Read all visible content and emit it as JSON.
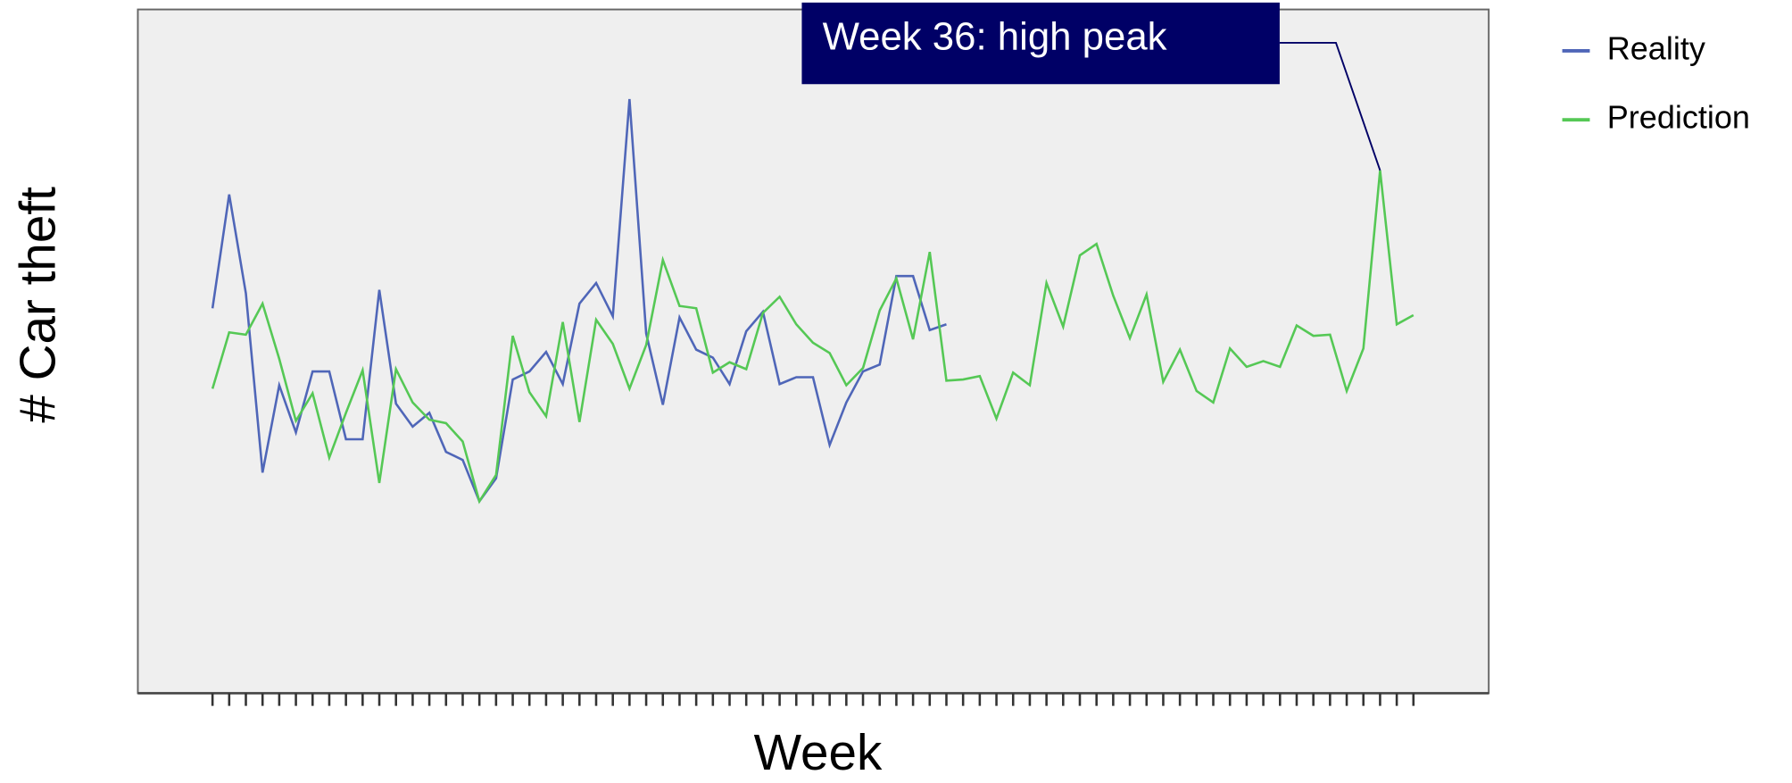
{
  "chart_data": {
    "type": "line",
    "x_label": "Week",
    "y_label": "# Car theft",
    "annotation": "Week 36: high peak",
    "categories": [
      null,
      null,
      null,
      null,
      null,
      null,
      null,
      null,
      null,
      null,
      null,
      null,
      null,
      null,
      null,
      null,
      null,
      null,
      null,
      null,
      null,
      null,
      null,
      null,
      null,
      null,
      null,
      null,
      null,
      null,
      null,
      null,
      null,
      null,
      null,
      null,
      null,
      null,
      null,
      null,
      null,
      null,
      null,
      null,
      null,
      null,
      null,
      null,
      null,
      null,
      null,
      null,
      null,
      null,
      null,
      null,
      null,
      null,
      null,
      null,
      null,
      null,
      null,
      null,
      null,
      null,
      null,
      null,
      null,
      null,
      null,
      null,
      null
    ],
    "series": [
      {
        "name": "Reality",
        "color": "#4f66b8",
        "values": [
          335,
          434,
          348,
          192,
          268,
          227,
          280,
          280,
          221,
          221,
          351,
          252,
          232,
          244,
          210,
          203,
          167,
          187,
          273,
          280,
          297,
          269,
          339,
          357,
          328,
          517,
          313,
          251,
          327,
          299,
          292,
          269,
          315,
          332,
          269,
          275,
          275,
          216,
          253,
          280,
          286,
          363,
          363,
          316,
          321,
          null,
          null,
          null,
          null,
          null,
          null,
          null,
          null,
          null,
          null,
          null,
          null,
          null,
          null,
          null,
          null,
          null,
          null,
          null,
          null,
          null,
          null,
          null,
          null,
          null,
          null,
          null,
          null
        ]
      },
      {
        "name": "Prediction",
        "color": "#55c855",
        "values": [
          265,
          314,
          312,
          339,
          291,
          237,
          261,
          205,
          244,
          281,
          183,
          282,
          253,
          238,
          235,
          219,
          167,
          190,
          311,
          262,
          241,
          323,
          236,
          325,
          304,
          265,
          303,
          377,
          337,
          335,
          279,
          288,
          282,
          331,
          345,
          321,
          305,
          296,
          268,
          283,
          333,
          361,
          308,
          384,
          272,
          273,
          276,
          239,
          279,
          268,
          357,
          319,
          381,
          391,
          346,
          309,
          347,
          271,
          299,
          263,
          253,
          300,
          284,
          289,
          284,
          320,
          311,
          312,
          263,
          300,
          455,
          321,
          329
        ]
      }
    ],
    "ylim": [
      0,
      595
    ],
    "legend": "top-right"
  }
}
